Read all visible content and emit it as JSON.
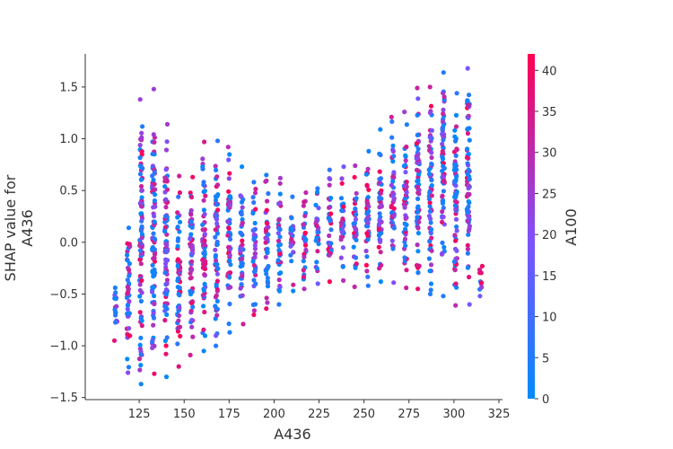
{
  "chart_data": {
    "type": "scatter",
    "title": "",
    "xlabel": "A436",
    "ylabel_lines": [
      "SHAP value for",
      "A436"
    ],
    "xlim": [
      95,
      327
    ],
    "ylim": [
      -1.52,
      1.82
    ],
    "xticks": [
      125,
      150,
      175,
      200,
      225,
      250,
      275,
      300,
      325
    ],
    "xtick_labels": [
      "125",
      "150",
      "175",
      "200",
      "225",
      "250",
      "275",
      "300",
      "325"
    ],
    "yticks": [
      -1.5,
      -1.0,
      -0.5,
      0.0,
      0.5,
      1.0,
      1.5
    ],
    "ytick_labels": [
      "−1.5",
      "−1.0",
      "−0.5",
      "0.0",
      "0.5",
      "1.0",
      "1.5"
    ],
    "grid": false,
    "colorbar": {
      "label": "A100",
      "range": [
        0,
        42
      ],
      "ticks": [
        0,
        5,
        10,
        15,
        20,
        25,
        30,
        35,
        40
      ],
      "tick_labels": [
        "0",
        "5",
        "10",
        "15",
        "20",
        "25",
        "30",
        "35",
        "40"
      ],
      "colors": [
        "#008bfb",
        "#7c52ff",
        "#ff0052"
      ]
    },
    "columns": [
      {
        "x": 112,
        "ymin": -0.95,
        "ymax": -0.44
      },
      {
        "x": 119,
        "ymin": -1.26,
        "ymax": 0.14
      },
      {
        "x": 126,
        "ymin": -1.37,
        "ymax": 1.38
      },
      {
        "x": 133,
        "ymin": -1.27,
        "ymax": 1.48
      },
      {
        "x": 140,
        "ymin": -1.3,
        "ymax": 1.14
      },
      {
        "x": 147,
        "ymin": -1.2,
        "ymax": 0.64
      },
      {
        "x": 154,
        "ymin": -1.09,
        "ymax": 0.63
      },
      {
        "x": 161,
        "ymin": -1.05,
        "ymax": 0.97
      },
      {
        "x": 168,
        "ymin": -1.0,
        "ymax": 0.98
      },
      {
        "x": 175,
        "ymin": -0.87,
        "ymax": 0.92
      },
      {
        "x": 182,
        "ymin": -0.79,
        "ymax": 0.73
      },
      {
        "x": 189,
        "ymin": -0.7,
        "ymax": 0.58
      },
      {
        "x": 196,
        "ymin": -0.64,
        "ymax": 0.65
      },
      {
        "x": 203,
        "ymin": -0.6,
        "ymax": 0.62
      },
      {
        "x": 210,
        "ymin": -0.47,
        "ymax": 0.44
      },
      {
        "x": 217,
        "ymin": -0.45,
        "ymax": 0.48
      },
      {
        "x": 224,
        "ymin": -0.4,
        "ymax": 0.52
      },
      {
        "x": 231,
        "ymin": -0.38,
        "ymax": 0.7
      },
      {
        "x": 238,
        "ymin": -0.37,
        "ymax": 0.73
      },
      {
        "x": 245,
        "ymin": -0.43,
        "ymax": 0.74
      },
      {
        "x": 252,
        "ymin": -0.42,
        "ymax": 0.88
      },
      {
        "x": 259,
        "ymin": -0.38,
        "ymax": 1.09
      },
      {
        "x": 266,
        "ymin": -0.39,
        "ymax": 1.21
      },
      {
        "x": 273,
        "ymin": -0.44,
        "ymax": 1.26
      },
      {
        "x": 280,
        "ymin": -0.45,
        "ymax": 1.49
      },
      {
        "x": 287,
        "ymin": -0.5,
        "ymax": 1.5
      },
      {
        "x": 294,
        "ymin": -0.52,
        "ymax": 1.64
      },
      {
        "x": 301,
        "ymin": -0.61,
        "ymax": 1.44
      },
      {
        "x": 308,
        "ymin": -0.6,
        "ymax": 1.68
      },
      {
        "x": 315,
        "ymin": -0.52,
        "ymax": -0.23
      }
    ]
  }
}
